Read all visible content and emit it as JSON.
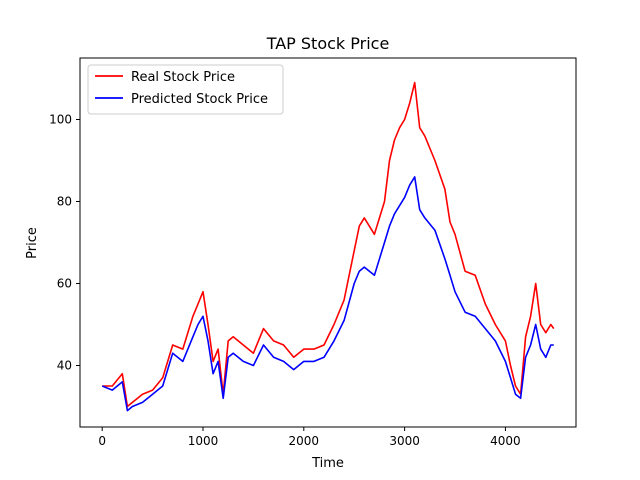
{
  "chart_data": {
    "type": "line",
    "title": "TAP Stock Price",
    "xlabel": "Time",
    "ylabel": "Price",
    "xlim": [
      -220,
      4700
    ],
    "ylim": [
      25,
      115
    ],
    "xticks": [
      0,
      1000,
      2000,
      3000,
      4000
    ],
    "yticks": [
      40,
      60,
      80,
      100
    ],
    "legend_position": "top-left",
    "grid": false,
    "series": [
      {
        "name": "Real Stock Price",
        "color": "#ff0000",
        "x": [
          0,
          100,
          200,
          250,
          300,
          400,
          500,
          600,
          700,
          800,
          900,
          950,
          1000,
          1050,
          1100,
          1150,
          1200,
          1250,
          1300,
          1400,
          1500,
          1600,
          1700,
          1800,
          1900,
          2000,
          2100,
          2200,
          2300,
          2400,
          2500,
          2550,
          2600,
          2700,
          2800,
          2850,
          2900,
          2950,
          3000,
          3050,
          3100,
          3150,
          3200,
          3300,
          3400,
          3450,
          3500,
          3600,
          3700,
          3800,
          3900,
          4000,
          4050,
          4100,
          4150,
          4200,
          4250,
          4300,
          4350,
          4400,
          4450,
          4480
        ],
        "y": [
          35,
          35,
          38,
          30,
          31,
          33,
          34,
          37,
          45,
          44,
          52,
          55,
          58,
          50,
          41,
          44,
          33,
          46,
          47,
          45,
          43,
          49,
          46,
          45,
          42,
          44,
          44,
          45,
          50,
          56,
          68,
          74,
          76,
          72,
          80,
          90,
          95,
          98,
          100,
          104,
          109,
          98,
          96,
          90,
          83,
          75,
          72,
          63,
          62,
          55,
          50,
          46,
          40,
          35,
          33,
          47,
          52,
          60,
          50,
          48,
          50,
          49
        ]
      },
      {
        "name": "Predicted Stock Price",
        "color": "#0000ff",
        "x": [
          0,
          100,
          200,
          250,
          300,
          400,
          500,
          600,
          700,
          800,
          900,
          950,
          1000,
          1050,
          1100,
          1150,
          1200,
          1250,
          1300,
          1400,
          1500,
          1600,
          1700,
          1800,
          1900,
          2000,
          2100,
          2200,
          2300,
          2400,
          2500,
          2550,
          2600,
          2700,
          2800,
          2850,
          2900,
          2950,
          3000,
          3050,
          3100,
          3150,
          3200,
          3300,
          3400,
          3450,
          3500,
          3600,
          3700,
          3800,
          3900,
          4000,
          4050,
          4100,
          4150,
          4200,
          4250,
          4300,
          4350,
          4400,
          4450,
          4480
        ],
        "y": [
          35,
          34,
          36,
          29,
          30,
          31,
          33,
          35,
          43,
          41,
          47,
          50,
          52,
          46,
          38,
          41,
          32,
          42,
          43,
          41,
          40,
          45,
          42,
          41,
          39,
          41,
          41,
          42,
          46,
          51,
          60,
          63,
          64,
          62,
          70,
          74,
          77,
          79,
          81,
          84,
          86,
          78,
          76,
          73,
          66,
          62,
          58,
          53,
          52,
          49,
          46,
          41,
          37,
          33,
          32,
          42,
          45,
          50,
          44,
          42,
          45,
          45
        ]
      }
    ]
  }
}
